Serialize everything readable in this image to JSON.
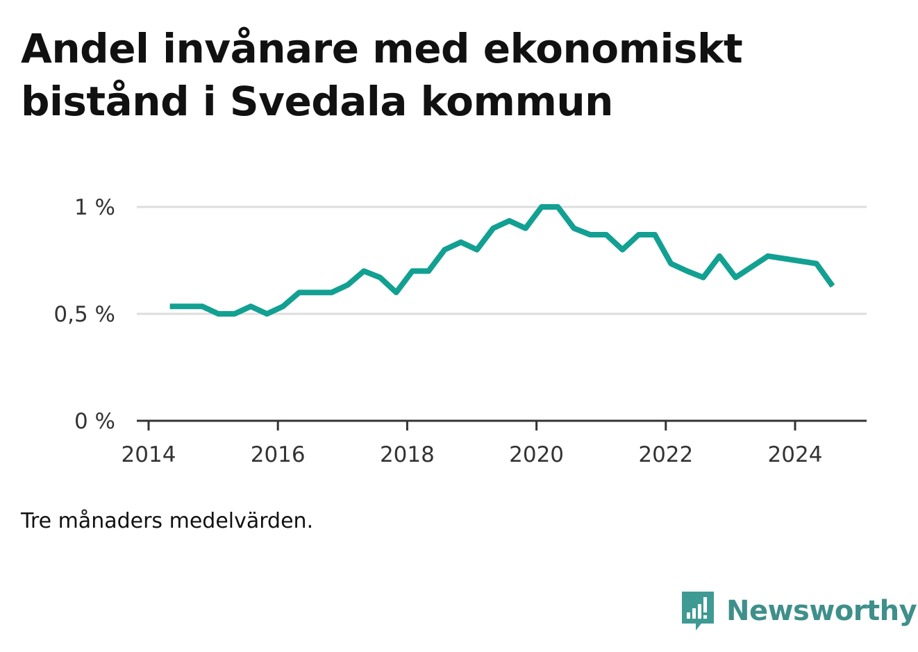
{
  "title": "Andel invånare med ekonomiskt bistånd i Svedala kommun",
  "note": "Tre månaders medelvärden.",
  "brand": {
    "name": "Newsworthy",
    "icon": "newsworthy-logo-icon",
    "color": "#3f9a94"
  },
  "colors": {
    "line": "#12a092",
    "grid": "#dddddd",
    "axis": "#333333",
    "tick_text": "#333333"
  },
  "chart_data": {
    "type": "line",
    "title": "Andel invånare med ekonomiskt bistånd i Svedala kommun",
    "xlabel": "",
    "ylabel": "",
    "xlim": [
      2014.0,
      2025.25
    ],
    "ylim": [
      0,
      1.0
    ],
    "x_ticks": [
      2014,
      2016,
      2018,
      2020,
      2022,
      2024
    ],
    "x_tick_labels": [
      "2014",
      "2016",
      "2018",
      "2020",
      "2022",
      "2024"
    ],
    "y_ticks": [
      0,
      0.5,
      1.0
    ],
    "y_tick_labels": [
      "0 %",
      "0,5 %",
      "1 %"
    ],
    "grid": true,
    "series": [
      {
        "values": [
          [
            2014.33,
            0.535
          ],
          [
            2014.58,
            0.535
          ],
          [
            2014.83,
            0.535
          ],
          [
            2015.08,
            0.5
          ],
          [
            2015.33,
            0.5
          ],
          [
            2015.58,
            0.535
          ],
          [
            2015.83,
            0.5
          ],
          [
            2016.08,
            0.535
          ],
          [
            2016.33,
            0.6
          ],
          [
            2016.58,
            0.6
          ],
          [
            2016.83,
            0.6
          ],
          [
            2017.08,
            0.635
          ],
          [
            2017.33,
            0.7
          ],
          [
            2017.58,
            0.67
          ],
          [
            2017.83,
            0.6
          ],
          [
            2018.08,
            0.7
          ],
          [
            2018.33,
            0.7
          ],
          [
            2018.58,
            0.8
          ],
          [
            2018.83,
            0.835
          ],
          [
            2019.08,
            0.8
          ],
          [
            2019.33,
            0.9
          ],
          [
            2019.58,
            0.935
          ],
          [
            2019.83,
            0.9
          ],
          [
            2020.08,
            1.0
          ],
          [
            2020.33,
            1.0
          ],
          [
            2020.58,
            0.9
          ],
          [
            2020.83,
            0.87
          ],
          [
            2021.08,
            0.87
          ],
          [
            2021.33,
            0.8
          ],
          [
            2021.58,
            0.87
          ],
          [
            2021.83,
            0.87
          ],
          [
            2022.08,
            0.735
          ],
          [
            2022.33,
            0.7
          ],
          [
            2022.58,
            0.67
          ],
          [
            2022.83,
            0.77
          ],
          [
            2023.08,
            0.67
          ],
          [
            2023.58,
            0.77
          ],
          [
            2024.33,
            0.735
          ],
          [
            2024.58,
            0.63
          ]
        ]
      }
    ]
  }
}
